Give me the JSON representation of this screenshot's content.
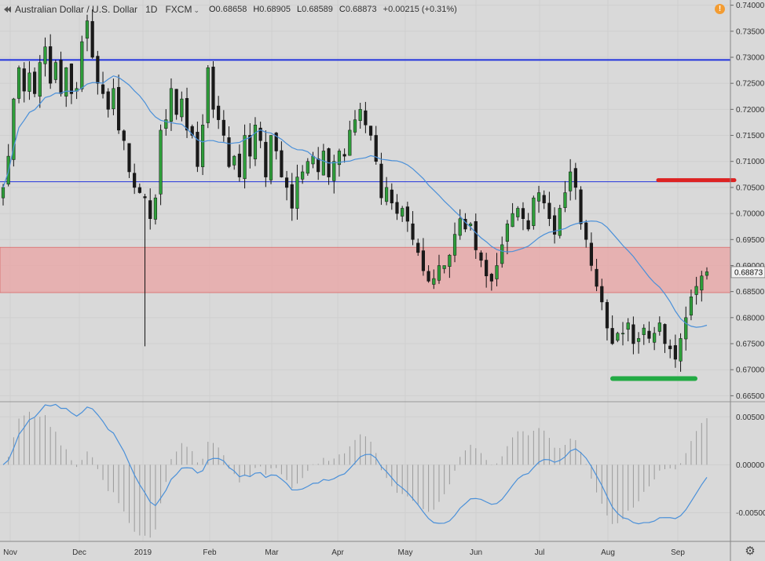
{
  "header": {
    "symbol": "Australian Dollar / U.S. Dollar",
    "interval": "1D",
    "source": "FXCM",
    "open_label": "O",
    "open": "0.68658",
    "high_label": "H",
    "high": "0.68905",
    "low_label": "L",
    "low": "0.68589",
    "close_label": "C",
    "close": "0.68873",
    "change": "+0.00215 (+0.31%)"
  },
  "alert_badge": "!",
  "price_tag": "0.68873",
  "colors": {
    "background": "#d9d9d9",
    "candle_up": "#2e9e3a",
    "candle_down": "#1a1a1a",
    "ma_line": "#4a90d9",
    "resistance_line": "#2233dd",
    "support_zone": "#e8a9a9",
    "red_marker": "#dd2222",
    "green_marker": "#22aa44"
  },
  "icons": {
    "settings": "gear-icon",
    "collapse": "collapse-icon",
    "alert": "alert-icon"
  },
  "chart_data": [
    {
      "type": "candlestick",
      "title": "Australian Dollar / U.S. Dollar, 1D, FXCM",
      "xlabel": "",
      "ylabel": "",
      "x_ticks": [
        "Nov",
        "Dec",
        "2019",
        "Feb",
        "Mar",
        "Apr",
        "May",
        "Jun",
        "Jul",
        "Aug",
        "Sep"
      ],
      "y_ticks": [
        "0.74000",
        "0.73500",
        "0.73000",
        "0.72500",
        "0.72000",
        "0.71500",
        "0.71000",
        "0.70500",
        "0.70000",
        "0.69500",
        "0.69000",
        "0.68500",
        "0.68000",
        "0.67500",
        "0.67000",
        "0.66500"
      ],
      "ylim": [
        0.664,
        0.741
      ],
      "close_series": [
        0.705,
        0.711,
        0.722,
        0.728,
        0.7235,
        0.727,
        0.723,
        0.729,
        0.732,
        0.725,
        0.729,
        0.723,
        0.728,
        0.723,
        0.724,
        0.733,
        0.737,
        0.73,
        0.725,
        0.723,
        0.72,
        0.724,
        0.716,
        0.714,
        0.708,
        0.705,
        0.704,
        0.703,
        0.699,
        0.703,
        0.716,
        0.718,
        0.724,
        0.719,
        0.722,
        0.716,
        0.715,
        0.709,
        0.717,
        0.728,
        0.72,
        0.718,
        0.715,
        0.709,
        0.711,
        0.707,
        0.715,
        0.711,
        0.717,
        0.714,
        0.707,
        0.715,
        0.712,
        0.707,
        0.705,
        0.701,
        0.707,
        0.708,
        0.71,
        0.711,
        0.708,
        0.712,
        0.707,
        0.71,
        0.712,
        0.711,
        0.716,
        0.718,
        0.72,
        0.717,
        0.715,
        0.71,
        0.703,
        0.705,
        0.702,
        0.7,
        0.701,
        0.6985,
        0.695,
        0.6925,
        0.689,
        0.687,
        0.6875,
        0.69,
        0.69,
        0.692,
        0.696,
        0.699,
        0.697,
        0.698,
        0.693,
        0.691,
        0.688,
        0.687,
        0.69,
        0.694,
        0.698,
        0.7,
        0.701,
        0.699,
        0.697,
        0.703,
        0.704,
        0.702,
        0.699,
        0.696,
        0.701,
        0.704,
        0.708,
        0.705,
        0.698,
        0.695,
        0.69,
        0.686,
        0.683,
        0.678,
        0.675,
        0.677,
        0.677,
        0.679,
        0.675,
        0.676,
        0.678,
        0.676,
        0.677,
        0.679,
        0.675,
        0.674,
        0.672,
        0.676,
        0.68,
        0.684,
        0.686,
        0.688,
        0.6888
      ],
      "moving_average": "trailing 20-day mean of close",
      "horizontal_lines": [
        {
          "name": "resistance",
          "value": 0.7295
        },
        {
          "name": "support",
          "value": 0.7061
        }
      ],
      "zones": [
        {
          "name": "support-zone",
          "from": 0.6848,
          "to": 0.6935
        }
      ],
      "markers": [
        {
          "name": "red-marker",
          "value": 0.7064
        },
        {
          "name": "green-marker",
          "value": 0.6683
        }
      ]
    },
    {
      "type": "line",
      "title": "",
      "xlabel": "",
      "ylabel": "",
      "y_ticks": [
        "0.00500",
        "0.00000",
        "-0.00500"
      ],
      "ylim": [
        -0.008,
        0.0065
      ],
      "series": [
        {
          "values_from": "MACD of close (12, 26) with signal-difference histogram"
        }
      ]
    }
  ]
}
